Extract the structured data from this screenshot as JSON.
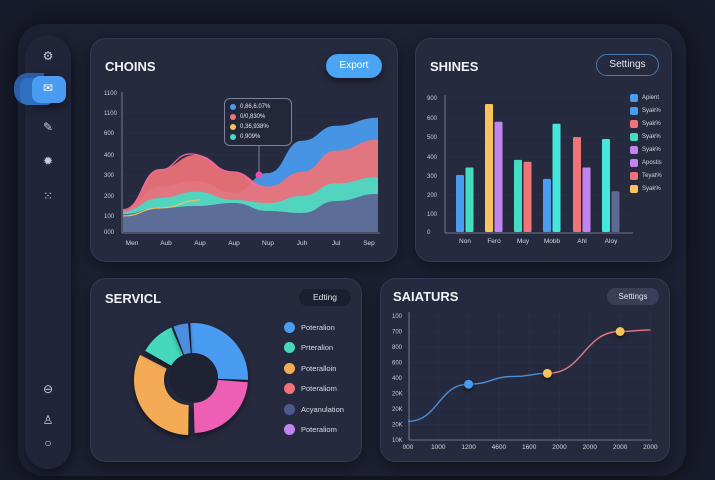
{
  "sidebar": {
    "items": [
      {
        "icon": "settings-dots-icon",
        "glyph": "⚙"
      },
      {
        "icon": "inbox-icon",
        "glyph": "✉",
        "active": true
      },
      {
        "icon": "edit-icon",
        "glyph": "✎"
      },
      {
        "icon": "gear-icon",
        "glyph": "✹"
      },
      {
        "icon": "grid-icon",
        "glyph": "⁙"
      },
      {
        "icon": "minus-circle-icon",
        "glyph": "⊖"
      },
      {
        "icon": "user-icon",
        "glyph": "♙"
      },
      {
        "icon": "circle-icon",
        "glyph": "○"
      }
    ]
  },
  "colors": {
    "accent": "#4a9cf2",
    "blue": "#4a9cf2",
    "red": "#f07377",
    "teal": "#45dcc4",
    "yellow": "#f8c35a",
    "purple": "#c285f0",
    "slate": "#5d6896",
    "pink": "#ec5fb5",
    "orange": "#f5ab55"
  },
  "cards": {
    "choins": {
      "title": "CHOINS",
      "button": "Export",
      "tooltip": [
        {
          "color": "#4a9cf2",
          "text": "0,86,6.07%"
        },
        {
          "color": "#f07377",
          "text": "0/0,830%"
        },
        {
          "color": "#f8c35a",
          "text": "0,36,938%"
        },
        {
          "color": "#45dcc4",
          "text": "0,909%"
        }
      ]
    },
    "shines": {
      "title": "SHINES",
      "button": "Settings",
      "legend": [
        {
          "color": "#4a9cf2",
          "label": "Apient"
        },
        {
          "color": "#4a9cf2",
          "label": "Syak%"
        },
        {
          "color": "#f07377",
          "label": "Syak%"
        },
        {
          "color": "#45dcc4",
          "label": "Syak%"
        },
        {
          "color": "#c285f0",
          "label": "Syak%"
        },
        {
          "color": "#c285f0",
          "label": "Apostis"
        },
        {
          "color": "#f07377",
          "label": "Teyat%"
        },
        {
          "color": "#f8c35a",
          "label": "Syak%"
        }
      ]
    },
    "servicl": {
      "title": "SERVICL",
      "button": "Edting",
      "legend": [
        {
          "color": "#4a9cf2",
          "label": "Poteralion"
        },
        {
          "color": "#45d8bd",
          "label": "Prteralion"
        },
        {
          "color": "#f5ab55",
          "label": "Poteralloin"
        },
        {
          "color": "#f07377",
          "label": "Poteraliom"
        },
        {
          "color": "#4d5b8c",
          "label": "Acyanulation"
        },
        {
          "color": "#c285f0",
          "label": "Poteraliom"
        }
      ]
    },
    "saiaturs": {
      "title": "SAIATURS",
      "button": "Settings"
    }
  },
  "chart_data": [
    {
      "type": "area",
      "categories": [
        "Men",
        "Aub",
        "Aup",
        "Aup",
        "Nup",
        "Juh",
        "Jul",
        "Sep"
      ],
      "yticks": [
        "000",
        "100",
        "200",
        "300",
        "400",
        "600",
        "1100",
        "1100"
      ],
      "series": [
        {
          "color": "#4a9cf2",
          "values": [
            125,
            245,
            270,
            215,
            310,
            530,
            780,
            980
          ]
        },
        {
          "color": "#f07377",
          "values": [
            135,
            330,
            400,
            315,
            245,
            315,
            440,
            540
          ]
        },
        {
          "color": "#45dcc4",
          "values": [
            125,
            190,
            220,
            180,
            165,
            200,
            260,
            290
          ]
        },
        {
          "color": "#5d6896",
          "values": [
            110,
            140,
            150,
            165,
            125,
            115,
            175,
            210
          ]
        }
      ],
      "grid": true
    },
    {
      "type": "bar",
      "categories": [
        "Non",
        "Fero",
        "Muy",
        "Mobb",
        "Ahl",
        "Aloy"
      ],
      "yticks": [
        "0",
        "100",
        "200",
        "300",
        "400",
        "500",
        "600",
        "900"
      ],
      "groups": [
        [
          {
            "color": "#4a9cf2",
            "value": 305
          },
          {
            "color": "#45dcc4",
            "value": 345
          }
        ],
        [
          {
            "color": "#f8c35a",
            "value": 810
          },
          {
            "color": "#c285f0",
            "value": 580
          }
        ],
        [
          {
            "color": "#45dcc4",
            "value": 385
          },
          {
            "color": "#f07377",
            "value": 375
          }
        ],
        [
          {
            "color": "#4a9cf2",
            "value": 285
          },
          {
            "color": "#45e6dc",
            "value": 570
          }
        ],
        [
          {
            "color": "#f07377",
            "value": 500
          },
          {
            "color": "#c285f0",
            "value": 345
          }
        ],
        [
          {
            "color": "#45e6dc",
            "value": 490
          },
          {
            "color": "#5d6896",
            "value": 220
          }
        ]
      ],
      "grid": true,
      "legend": "right"
    },
    {
      "type": "pie",
      "donut": true,
      "slices": [
        {
          "color": "#4a9cf2",
          "value": 27
        },
        {
          "color": "#ec5fb5",
          "value": 24
        },
        {
          "color": "#f5ab55",
          "value": 33
        },
        {
          "color": "#45d8bd",
          "value": 11
        },
        {
          "color": "#4a8ee0",
          "value": 5
        }
      ],
      "legend": "right"
    },
    {
      "type": "line",
      "xticks": [
        "000",
        "1000",
        "1200",
        "4600",
        "1600",
        "2000",
        "2000",
        "2000",
        "2000"
      ],
      "yticks": [
        "10K",
        "20K",
        "20K",
        "20K",
        "400",
        "600",
        "800",
        "700",
        "100"
      ],
      "points": [
        {
          "x": 0,
          "y": 1.2,
          "color": "#4a9cf2"
        },
        {
          "x": 2,
          "y": 3.6,
          "color": "#4a9cf2",
          "marker": true
        },
        {
          "x": 3.5,
          "y": 4.1
        },
        {
          "x": 4.6,
          "y": 4.3,
          "color": "#f8c35a",
          "marker": true
        },
        {
          "x": 7,
          "y": 7.0,
          "color": "#f8c35a",
          "marker": true
        },
        {
          "x": 8,
          "y": 7.1
        }
      ],
      "line_colors": [
        "#4a8fd6",
        "#e07a85"
      ],
      "grid": true
    }
  ]
}
